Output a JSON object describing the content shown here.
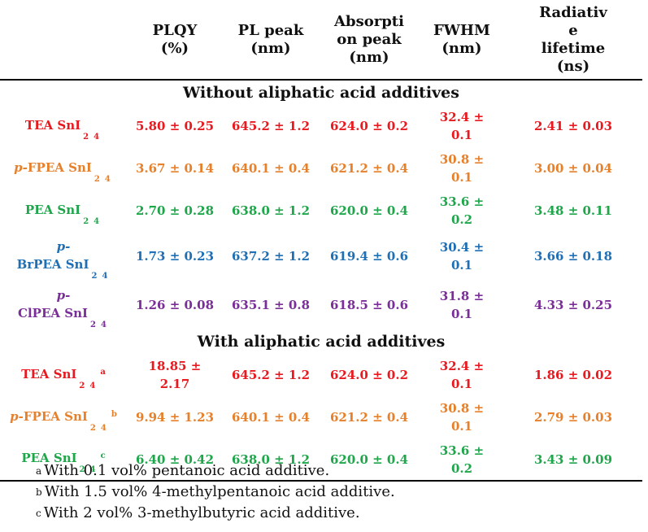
{
  "headers": [
    "",
    "PLQY (%)",
    "PL peak (nm)",
    "Absorption peak (nm)",
    "FWHM (nm)",
    "Radiative lifetime (ns)"
  ],
  "header_lines": {
    "plqy": [
      "PLQY",
      "(%)"
    ],
    "pl_peak": [
      "PL peak",
      "(nm)"
    ],
    "abs": [
      "Absorpti",
      "on peak",
      "(nm)"
    ],
    "fwhm": [
      "FWHM",
      "(nm)"
    ],
    "life": [
      "Radiativ",
      "e",
      "lifetime",
      "(ns)"
    ]
  },
  "sections": [
    {
      "title": "Without aliphatic acid additives",
      "rows": [
        {
          "prefix": "",
          "name": "TEA SnI",
          "sub": [
            "2",
            "4"
          ],
          "mark": "",
          "color": "#e8191f",
          "plqy": "5.80 ± 0.25",
          "pl": "645.2 ± 1.2",
          "abs": "624.0 ± 0.2",
          "fwhm": "32.4 ± 0.1",
          "life": "2.41 ± 0.03"
        },
        {
          "prefix": "p-",
          "name": "FPEA SnI",
          "sub": [
            "2",
            "4"
          ],
          "mark": "",
          "color": "#e6802b",
          "plqy": "3.67 ± 0.14",
          "pl": "640.1 ± 0.4",
          "abs": "621.2 ± 0.4",
          "fwhm": "30.8 ± 0.1",
          "life": "3.00 ± 0.04"
        },
        {
          "prefix": "",
          "name": "PEA SnI",
          "sub": [
            "2",
            "4"
          ],
          "mark": "",
          "color": "#1fa64b",
          "plqy": "2.70 ± 0.28",
          "pl": "638.0 ± 1.2",
          "abs": "620.0 ± 0.4",
          "fwhm": "33.6 ± 0.2",
          "life": "3.48 ± 0.11"
        },
        {
          "prefix": "p-",
          "name": "BrPEA SnI",
          "sub": [
            "2",
            "4"
          ],
          "mark": "",
          "color": "#1f6fb5",
          "plqy": "1.73 ± 0.23",
          "pl": "637.2 ± 1.2",
          "abs": "619.4 ± 0.6",
          "fwhm": "30.4 ± 0.1",
          "life": "3.66 ± 0.18"
        },
        {
          "prefix": "p-",
          "name": "ClPEA SnI",
          "sub": [
            "2",
            "4"
          ],
          "mark": "",
          "color": "#7a2e97",
          "plqy": "1.26 ± 0.08",
          "pl": "635.1 ± 0.8",
          "abs": "618.5 ± 0.6",
          "fwhm": "31.8 ± 0.1",
          "life": "4.33 ± 0.25"
        }
      ]
    },
    {
      "title": "With aliphatic acid additives",
      "rows": [
        {
          "prefix": "",
          "name": "TEA SnI",
          "sub": [
            "2",
            "4"
          ],
          "mark": "a",
          "color": "#e8191f",
          "plqy": "18.85 ± 2.17",
          "pl": "645.2 ± 1.2",
          "abs": "624.0 ± 0.2",
          "fwhm": "32.4 ± 0.1",
          "life": "1.86 ± 0.02"
        },
        {
          "prefix": "p-",
          "name": "FPEA SnI",
          "sub": [
            "2",
            "4"
          ],
          "mark": "b",
          "color": "#e6802b",
          "plqy": "9.94 ± 1.23",
          "pl": "640.1 ± 0.4",
          "abs": "621.2 ± 0.4",
          "fwhm": "30.8 ± 0.1",
          "life": "2.79 ± 0.03"
        },
        {
          "prefix": "",
          "name": "PEA SnI",
          "sub": [
            "2",
            "4"
          ],
          "mark": "c",
          "color": "#1fa64b",
          "plqy": "6.40 ± 0.42",
          "pl": "638.0 ± 1.2",
          "abs": "620.0 ± 0.4",
          "fwhm": "33.6 ± 0.2",
          "life": "3.43 ± 0.09"
        }
      ]
    }
  ],
  "footnotes": [
    {
      "mark": "a",
      "text": "With 0.1 vol% pentanoic acid additive."
    },
    {
      "mark": "b",
      "text": "With 1.5 vol% 4-methylpentanoic acid additive."
    },
    {
      "mark": "c",
      "text": "With 2 vol% 3-methylbutyric acid additive."
    }
  ]
}
